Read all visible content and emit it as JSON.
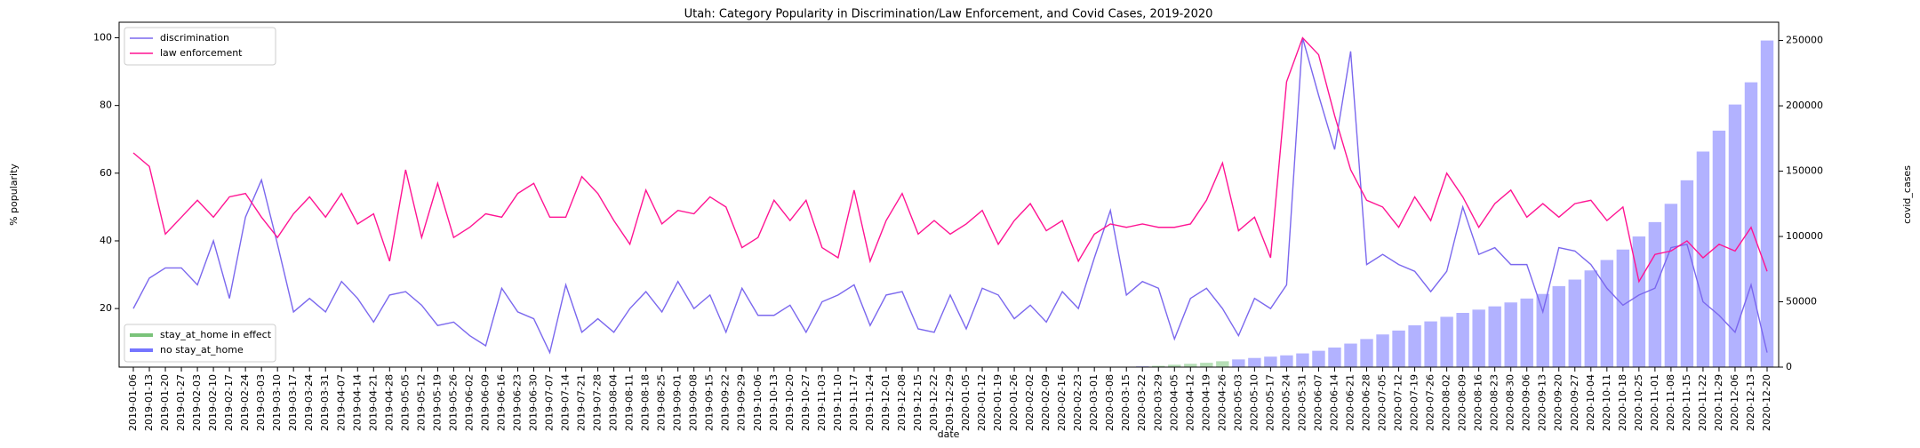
{
  "chart_data": {
    "type": "combo",
    "title": "Utah: Category Popularity in Discrimination/Law Enforcement, and Covid Cases, 2019-2020",
    "x_label": "date",
    "y_label": "% popularity",
    "y2_label": "covid_cases",
    "categories": [
      "2019-01-06",
      "2019-01-13",
      "2019-01-20",
      "2019-01-27",
      "2019-02-03",
      "2019-02-10",
      "2019-02-17",
      "2019-02-24",
      "2019-03-03",
      "2019-03-10",
      "2019-03-17",
      "2019-03-24",
      "2019-03-31",
      "2019-04-07",
      "2019-04-14",
      "2019-04-21",
      "2019-04-28",
      "2019-05-05",
      "2019-05-12",
      "2019-05-19",
      "2019-05-26",
      "2019-06-02",
      "2019-06-09",
      "2019-06-16",
      "2019-06-23",
      "2019-06-30",
      "2019-07-07",
      "2019-07-14",
      "2019-07-21",
      "2019-07-28",
      "2019-08-04",
      "2019-08-11",
      "2019-08-18",
      "2019-08-25",
      "2019-09-01",
      "2019-09-08",
      "2019-09-15",
      "2019-09-22",
      "2019-09-29",
      "2019-10-06",
      "2019-10-13",
      "2019-10-20",
      "2019-10-27",
      "2019-11-03",
      "2019-11-10",
      "2019-11-17",
      "2019-11-24",
      "2019-12-01",
      "2019-12-08",
      "2019-12-15",
      "2019-12-22",
      "2019-12-29",
      "2020-01-05",
      "2020-01-12",
      "2020-01-19",
      "2020-01-26",
      "2020-02-02",
      "2020-02-09",
      "2020-02-16",
      "2020-02-23",
      "2020-03-01",
      "2020-03-08",
      "2020-03-15",
      "2020-03-22",
      "2020-03-29",
      "2020-04-05",
      "2020-04-12",
      "2020-04-19",
      "2020-04-26",
      "2020-05-03",
      "2020-05-10",
      "2020-05-17",
      "2020-05-24",
      "2020-05-31",
      "2020-06-07",
      "2020-06-14",
      "2020-06-21",
      "2020-06-28",
      "2020-07-05",
      "2020-07-12",
      "2020-07-19",
      "2020-07-26",
      "2020-08-02",
      "2020-08-09",
      "2020-08-16",
      "2020-08-23",
      "2020-08-30",
      "2020-09-06",
      "2020-09-13",
      "2020-09-20",
      "2020-09-27",
      "2020-10-04",
      "2020-10-11",
      "2020-10-18",
      "2020-10-25",
      "2020-11-01",
      "2020-11-08",
      "2020-11-15",
      "2020-11-22",
      "2020-11-29",
      "2020-12-06",
      "2020-12-13",
      "2020-12-20"
    ],
    "series": [
      {
        "name": "discrimination",
        "type": "line",
        "color": "#7b68ee",
        "legend": "upper-left",
        "values": [
          20,
          29,
          32,
          32,
          27,
          40,
          23,
          47,
          58,
          39,
          19,
          23,
          19,
          28,
          23,
          16,
          24,
          25,
          21,
          15,
          16,
          12,
          9,
          26,
          19,
          17,
          7,
          27,
          13,
          17,
          13,
          20,
          25,
          19,
          28,
          20,
          24,
          13,
          26,
          18,
          18,
          21,
          13,
          22,
          24,
          27,
          15,
          24,
          25,
          14,
          13,
          24,
          14,
          26,
          24,
          17,
          21,
          16,
          25,
          20,
          35,
          49,
          24,
          28,
          26,
          11,
          23,
          26,
          20,
          12,
          23,
          20,
          27,
          100,
          83,
          67,
          96,
          33,
          36,
          33,
          31,
          25,
          31,
          50,
          36,
          38,
          33,
          33,
          19,
          38,
          37,
          33,
          26,
          21,
          24,
          26,
          38,
          39,
          22,
          18,
          13,
          27,
          7
        ]
      },
      {
        "name": "law enforcement",
        "type": "line",
        "color": "#ff1493",
        "legend": "upper-left",
        "values": [
          66,
          62,
          42,
          47,
          52,
          47,
          53,
          54,
          47,
          41,
          48,
          53,
          47,
          54,
          45,
          48,
          34,
          61,
          41,
          57,
          41,
          44,
          48,
          47,
          54,
          57,
          47,
          47,
          59,
          54,
          46,
          39,
          55,
          45,
          49,
          48,
          53,
          50,
          38,
          41,
          52,
          46,
          52,
          38,
          35,
          55,
          34,
          46,
          54,
          42,
          46,
          42,
          45,
          49,
          39,
          46,
          51,
          43,
          46,
          34,
          42,
          45,
          44,
          45,
          44,
          44,
          45,
          52,
          63,
          43,
          47,
          35,
          87,
          100,
          95,
          77,
          61,
          52,
          50,
          44,
          53,
          46,
          60,
          53,
          44,
          51,
          55,
          47,
          51,
          47,
          51,
          52,
          46,
          50,
          28,
          36,
          37,
          40,
          35,
          39,
          37,
          44,
          31
        ]
      },
      {
        "name": "stay_at_home in effect",
        "type": "bar",
        "axis": "y2",
        "color": "#2ca02c",
        "alpha": 0.35,
        "legend": "lower-left",
        "values": [
          null,
          null,
          null,
          null,
          null,
          null,
          null,
          null,
          null,
          null,
          null,
          null,
          null,
          null,
          null,
          null,
          null,
          null,
          null,
          null,
          null,
          null,
          null,
          null,
          null,
          null,
          null,
          null,
          null,
          null,
          null,
          null,
          null,
          null,
          null,
          null,
          null,
          null,
          null,
          null,
          null,
          null,
          null,
          null,
          null,
          null,
          null,
          null,
          null,
          null,
          null,
          null,
          null,
          null,
          null,
          null,
          null,
          null,
          null,
          null,
          null,
          null,
          null,
          null,
          1000,
          1800,
          2500,
          3300,
          4500,
          null,
          null,
          null,
          null,
          null,
          null,
          null,
          null,
          null,
          null,
          null,
          null,
          null,
          null,
          null,
          null,
          null,
          null,
          null,
          null,
          null,
          null,
          null,
          null,
          null,
          null,
          null,
          null,
          null,
          null,
          null,
          null,
          null,
          null
        ]
      },
      {
        "name": "no stay_at_home",
        "type": "bar",
        "axis": "y2",
        "color": "#0000ff",
        "alpha": 0.3,
        "legend": "lower-left",
        "values": [
          0,
          0,
          0,
          0,
          0,
          0,
          0,
          0,
          0,
          0,
          0,
          0,
          0,
          0,
          0,
          0,
          0,
          0,
          0,
          0,
          0,
          0,
          0,
          0,
          0,
          0,
          0,
          0,
          0,
          0,
          0,
          0,
          0,
          0,
          0,
          0,
          0,
          0,
          0,
          0,
          0,
          0,
          0,
          0,
          0,
          0,
          0,
          0,
          0,
          0,
          0,
          0,
          0,
          0,
          0,
          0,
          0,
          0,
          0,
          0,
          0,
          0,
          0,
          600,
          null,
          null,
          null,
          null,
          null,
          5900,
          7000,
          8000,
          9000,
          10500,
          12500,
          15000,
          18000,
          21500,
          25000,
          28000,
          32000,
          35000,
          38500,
          41500,
          44000,
          46500,
          49500,
          52500,
          56000,
          62000,
          67000,
          74000,
          82000,
          90000,
          100000,
          111000,
          125000,
          143000,
          165000,
          181000,
          201000,
          218000,
          250000
        ]
      }
    ],
    "ylim": [
      2.7,
      104.6
    ],
    "yticks": [
      20,
      40,
      60,
      80,
      100
    ],
    "y2lim": [
      0,
      264000
    ],
    "y2ticks": [
      0,
      50000,
      100000,
      150000,
      200000,
      250000
    ],
    "grid": false
  }
}
